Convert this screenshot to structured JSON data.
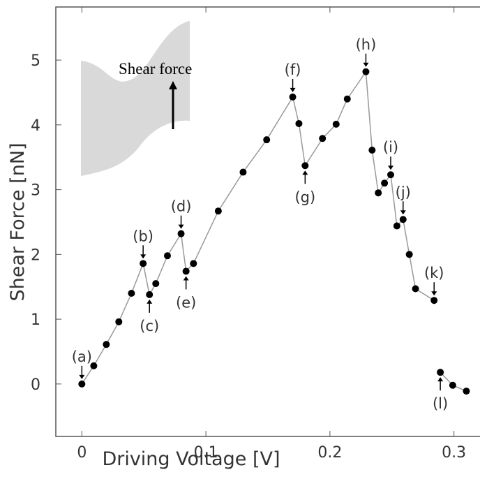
{
  "chart_data": {
    "type": "scatter",
    "xlabel": "Driving Voltage [V]",
    "ylabel": "Shear Force [nN]",
    "inset_label": "Shear force",
    "xlim": [
      -0.021,
      0.321
    ],
    "ylim": [
      -0.81,
      5.82
    ],
    "xticks": [
      0,
      0.1,
      0.2,
      0.3
    ],
    "yticks": [
      0,
      1,
      2,
      3,
      4,
      5
    ],
    "color": "#000000",
    "line_color": "#999999",
    "segments": [
      {
        "x": [
          0,
          0.0096,
          0.0197,
          0.0298,
          0.04,
          0.0494,
          0.0545,
          0.0596,
          0.069,
          0.08,
          0.084,
          0.09,
          0.11,
          0.13,
          0.149,
          0.17,
          0.175,
          0.18,
          0.194,
          0.205,
          0.214,
          0.229,
          0.234,
          0.239,
          0.244,
          0.249,
          0.254,
          0.259,
          0.264,
          0.269,
          0.284
        ],
        "values": [
          0,
          0.28,
          0.61,
          0.96,
          1.4,
          1.86,
          1.38,
          1.55,
          1.98,
          2.32,
          1.74,
          1.86,
          2.67,
          3.27,
          3.77,
          4.43,
          4.02,
          3.37,
          3.79,
          4.01,
          4.4,
          4.82,
          3.61,
          2.95,
          3.1,
          3.23,
          2.44,
          2.54,
          2.0,
          1.47,
          1.29
        ],
        "point_labels": [
          "(a)",
          null,
          null,
          null,
          null,
          "(b)",
          "(c)",
          null,
          null,
          "(d)",
          "(e)",
          null,
          null,
          null,
          null,
          "(f)",
          null,
          "(g)",
          null,
          null,
          null,
          "(h)",
          null,
          null,
          null,
          "(i)",
          null,
          "(j)",
          null,
          null,
          "(k)"
        ]
      },
      {
        "x": [
          0.289,
          0.299,
          0.31
        ],
        "values": [
          0.18,
          -0.02,
          -0.11
        ],
        "point_labels": [
          "(l)",
          null,
          null
        ]
      }
    ]
  }
}
